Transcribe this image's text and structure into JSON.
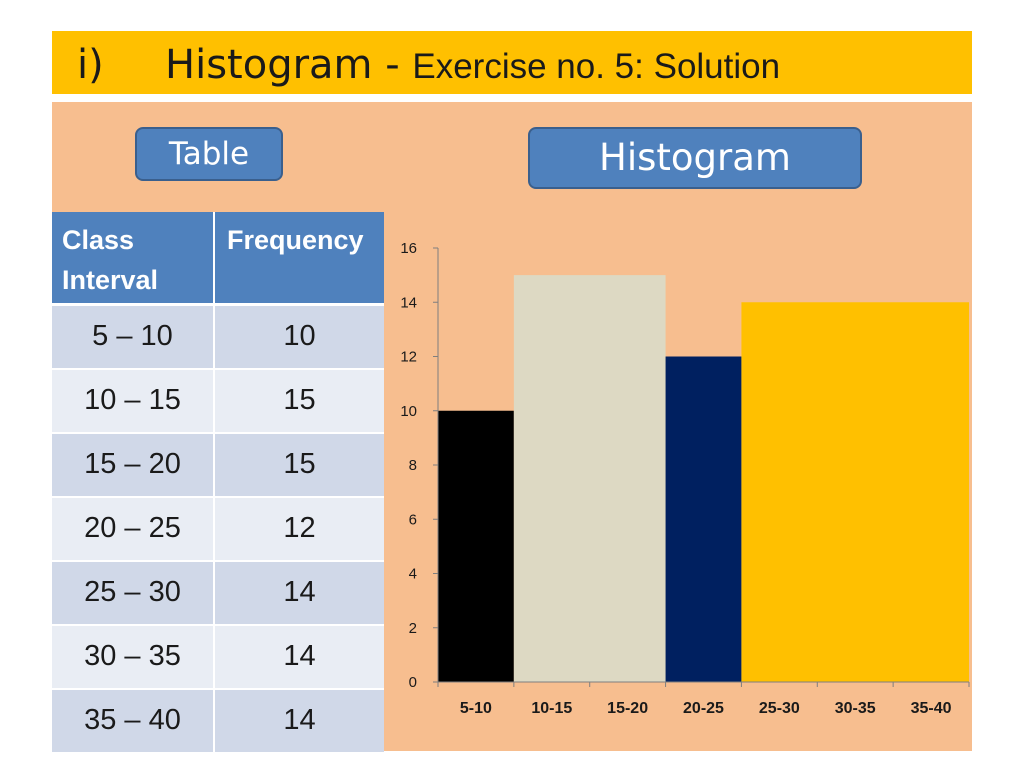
{
  "title": {
    "prefix": "i)",
    "main": "Histogram - ",
    "sub": "Exercise no. 5: Solution"
  },
  "buttons": {
    "table_label": "Table",
    "histogram_label": "Histogram"
  },
  "table": {
    "headers": [
      "Class Interval",
      "Frequency"
    ],
    "rows": [
      {
        "interval": "5 – 10",
        "frequency": "10"
      },
      {
        "interval": "10 – 15",
        "frequency": "15"
      },
      {
        "interval": "15 – 20",
        "frequency": "15"
      },
      {
        "interval": "20 – 25",
        "frequency": "12"
      },
      {
        "interval": "25 – 30",
        "frequency": "14"
      },
      {
        "interval": "30 – 35",
        "frequency": "14"
      },
      {
        "interval": "35 – 40",
        "frequency": "14"
      }
    ]
  },
  "chart_data": {
    "type": "bar",
    "title": "",
    "xlabel": "",
    "ylabel": "",
    "categories": [
      "5-10",
      "10-15",
      "15-20",
      "20-25",
      "25-30",
      "30-35",
      "35-40"
    ],
    "ylim": [
      0,
      16
    ],
    "yticks": [
      0,
      2,
      4,
      6,
      8,
      10,
      12,
      14,
      16
    ],
    "bars": [
      {
        "range": [
          "5-10",
          "5-10"
        ],
        "value": 10,
        "color": "#000000"
      },
      {
        "range": [
          "10-15",
          "15-20"
        ],
        "value": 15,
        "color": "#ddd9c3"
      },
      {
        "range": [
          "20-25",
          "20-25"
        ],
        "value": 12,
        "color": "#002060"
      },
      {
        "range": [
          "25-30",
          "35-40"
        ],
        "value": 14,
        "color": "#ffc000"
      }
    ],
    "grid": false,
    "legend": "none"
  }
}
